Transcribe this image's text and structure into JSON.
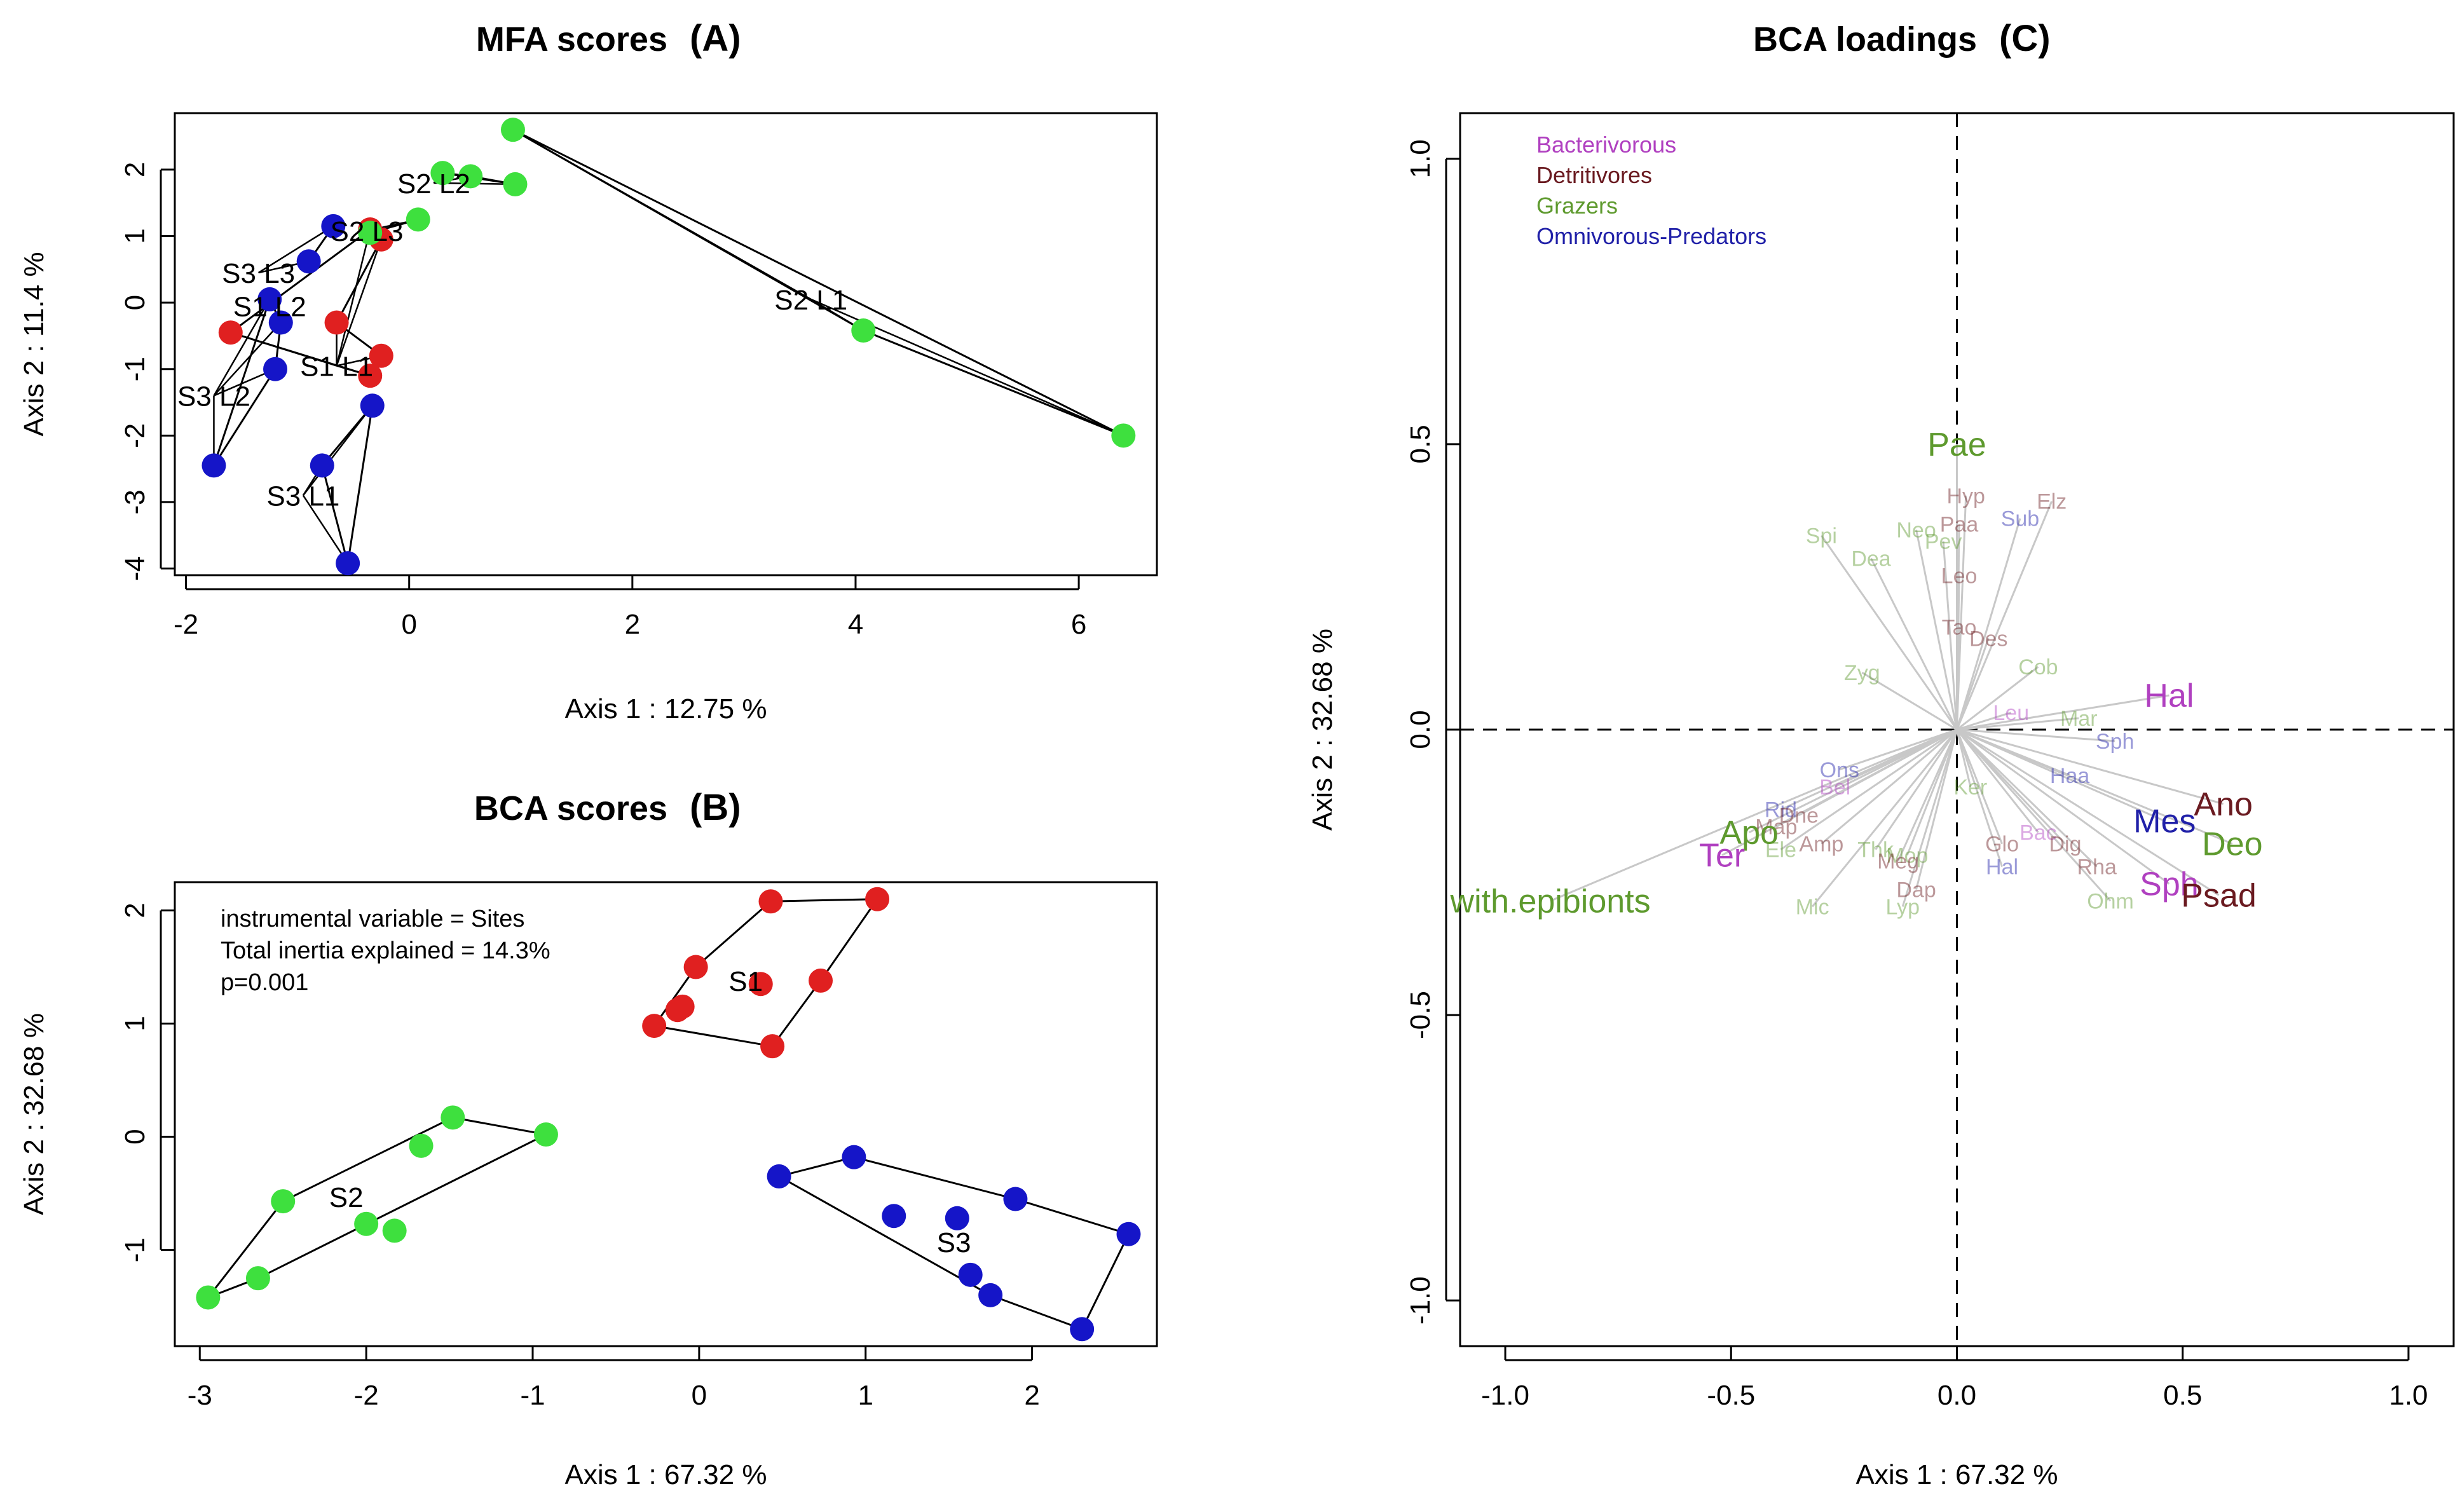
{
  "chart_data": [
    {
      "id": "A",
      "type": "scatter",
      "title": "MFA scores",
      "panel_tag": "(A)",
      "xlabel": "Axis 1 :  12.75 %",
      "ylabel": "Axis 2 :  11.4 %",
      "xlim": [
        -2.1,
        6.7
      ],
      "ylim": [
        -4.1,
        2.85
      ],
      "xticks": [
        -2,
        0,
        2,
        4,
        6
      ],
      "yticks": [
        -4,
        -3,
        -2,
        -1,
        0,
        1,
        2
      ],
      "colors": {
        "S1": "#e02020",
        "S2": "#3ee03e",
        "S3": "#1515c8"
      },
      "groups": [
        {
          "name": "S1 L1",
          "site": "S1",
          "label_xy": [
            -0.65,
            -0.95
          ],
          "points": [
            [
              -0.35,
              1.1
            ],
            [
              -0.25,
              0.95
            ],
            [
              -0.65,
              -0.3
            ],
            [
              -0.25,
              -0.8
            ],
            [
              -0.35,
              -1.1
            ],
            [
              -1.6,
              -0.45
            ]
          ]
        },
        {
          "name": "S2 L1",
          "site": "S2",
          "label_xy": [
            3.6,
            0.05
          ],
          "points": [
            [
              0.93,
              2.6
            ],
            [
              6.4,
              -2.0
            ],
            [
              4.07,
              -0.42
            ]
          ]
        },
        {
          "name": "S2 L2",
          "site": "S2",
          "label_xy": [
            0.22,
            1.8
          ],
          "points": [
            [
              0.3,
              1.95
            ],
            [
              0.55,
              1.9
            ],
            [
              0.95,
              1.78
            ]
          ]
        },
        {
          "name": "S2 L3",
          "site": "S2",
          "label_xy": [
            -0.38,
            1.08
          ],
          "points": [
            [
              -0.35,
              1.05
            ],
            [
              0.08,
              1.25
            ]
          ]
        },
        {
          "name": "S3 L1",
          "site": "S3",
          "label_xy": [
            -0.95,
            -2.9
          ],
          "points": [
            [
              -0.33,
              -1.55
            ],
            [
              -0.78,
              -2.45
            ],
            [
              -0.55,
              -3.92
            ]
          ]
        },
        {
          "name": "S3 L2",
          "site": "S3",
          "label_xy": [
            -1.75,
            -1.4
          ],
          "points": [
            [
              -1.25,
              0.05
            ],
            [
              -1.15,
              -0.3
            ],
            [
              -1.2,
              -1.0
            ],
            [
              -1.75,
              -2.45
            ]
          ]
        },
        {
          "name": "S3 L3",
          "site": "S3",
          "label_xy": [
            -1.35,
            0.45
          ],
          "points": [
            [
              -0.68,
              1.15
            ],
            [
              -0.9,
              0.62
            ]
          ]
        }
      ],
      "text_labels": [
        "S3 L3",
        "S2 L3",
        "S1 L2",
        "S1 L1",
        "S3 L2",
        "S3 L1",
        "S2 L2",
        "S2 L1"
      ],
      "label_positions": [
        [
          -1.35,
          0.45
        ],
        [
          -0.38,
          1.08
        ],
        [
          -1.25,
          -0.05
        ],
        [
          -0.65,
          -0.95
        ],
        [
          -1.75,
          -1.4
        ],
        [
          -0.95,
          -2.9
        ],
        [
          0.22,
          1.8
        ],
        [
          3.6,
          0.05
        ]
      ]
    },
    {
      "id": "B",
      "type": "scatter",
      "title": "BCA scores",
      "panel_tag": "(B)",
      "xlabel": "Axis 1 :  67.32 %",
      "ylabel": "Axis 2 :  32.68 %",
      "xlim": [
        -3.15,
        2.75
      ],
      "ylim": [
        -1.85,
        2.25
      ],
      "xticks": [
        -3,
        -2,
        -1,
        0,
        1,
        2
      ],
      "yticks": [
        -1,
        0,
        1,
        2
      ],
      "info_lines": [
        "instrumental variable = Sites",
        "Total inertia explained = 14.3%",
        "p=0.001"
      ],
      "colors": {
        "S1": "#e02020",
        "S2": "#3ee03e",
        "S3": "#1515c8"
      },
      "groups": [
        {
          "name": "S1",
          "label_xy": [
            0.28,
            1.38
          ],
          "points": [
            [
              0.43,
              2.08
            ],
            [
              1.07,
              2.1
            ],
            [
              -0.02,
              1.5
            ],
            [
              0.73,
              1.38
            ],
            [
              0.37,
              1.35
            ],
            [
              -0.1,
              1.15
            ],
            [
              -0.13,
              1.12
            ],
            [
              -0.27,
              0.98
            ],
            [
              0.44,
              0.8
            ]
          ],
          "hull": [
            [
              0.43,
              2.08
            ],
            [
              1.07,
              2.1
            ],
            [
              0.73,
              1.38
            ],
            [
              0.44,
              0.8
            ],
            [
              -0.27,
              0.98
            ],
            [
              -0.02,
              1.5
            ]
          ]
        },
        {
          "name": "S2",
          "label_xy": [
            -2.12,
            -0.53
          ],
          "points": [
            [
              -1.48,
              0.17
            ],
            [
              -0.92,
              0.02
            ],
            [
              -1.67,
              -0.08
            ],
            [
              -2.5,
              -0.57
            ],
            [
              -2.0,
              -0.77
            ],
            [
              -1.83,
              -0.83
            ],
            [
              -2.65,
              -1.25
            ],
            [
              -2.95,
              -1.42
            ]
          ],
          "hull": [
            [
              -1.48,
              0.17
            ],
            [
              -0.92,
              0.02
            ],
            [
              -2.65,
              -1.25
            ],
            [
              -2.95,
              -1.42
            ],
            [
              -2.5,
              -0.57
            ]
          ]
        },
        {
          "name": "S3",
          "label_xy": [
            1.53,
            -0.93
          ],
          "points": [
            [
              0.48,
              -0.35
            ],
            [
              0.93,
              -0.18
            ],
            [
              1.9,
              -0.55
            ],
            [
              1.17,
              -0.7
            ],
            [
              1.55,
              -0.72
            ],
            [
              2.58,
              -0.86
            ],
            [
              1.63,
              -1.22
            ],
            [
              1.75,
              -1.4
            ],
            [
              2.3,
              -1.7
            ]
          ],
          "hull": [
            [
              0.48,
              -0.35
            ],
            [
              0.93,
              -0.18
            ],
            [
              1.9,
              -0.55
            ],
            [
              2.58,
              -0.86
            ],
            [
              2.3,
              -1.7
            ],
            [
              1.75,
              -1.4
            ]
          ]
        }
      ]
    },
    {
      "id": "C",
      "type": "scatter",
      "title": "BCA loadings",
      "panel_tag": "(C)",
      "xlabel": "Axis 1 :  67.32 %",
      "ylabel": "Axis 2 :  32.68 %",
      "xlim": [
        -1.1,
        1.1
      ],
      "ylim": [
        -1.08,
        1.08
      ],
      "xticks": [
        -1.0,
        -0.5,
        0.0,
        0.5,
        1.0
      ],
      "yticks": [
        -1.0,
        -0.5,
        0.0,
        0.5,
        1.0
      ],
      "tick_labels": [
        "-1.0",
        "-0.5",
        "0.0",
        "0.5",
        "1.0"
      ],
      "legend": [
        {
          "label": "Bacterivorous",
          "color": "#b040c0"
        },
        {
          "label": "Detritivores",
          "color": "#6a1a20"
        },
        {
          "label": "Grazers",
          "color": "#5e9a2e"
        },
        {
          "label": "Omnivorous-Predators",
          "color": "#2020a8"
        }
      ],
      "strong_loadings": [
        {
          "label": "Pae",
          "x": 0.0,
          "y": 0.5,
          "group": "Grazers"
        },
        {
          "label": "Hal",
          "x": 0.47,
          "y": 0.06,
          "group": "Bacterivorous"
        },
        {
          "label": "Ano",
          "x": 0.59,
          "y": -0.13,
          "group": "Detritivores"
        },
        {
          "label": "Mes",
          "x": 0.46,
          "y": -0.16,
          "group": "Omnivorous-Predators"
        },
        {
          "label": "Deo",
          "x": 0.61,
          "y": -0.2,
          "group": "Grazers"
        },
        {
          "label": "Sph",
          "x": 0.47,
          "y": -0.27,
          "group": "Bacterivorous"
        },
        {
          "label": "Psad",
          "x": 0.58,
          "y": -0.29,
          "group": "Detritivores"
        },
        {
          "label": "Apo",
          "x": -0.46,
          "y": -0.18,
          "group": "Grazers"
        },
        {
          "label": "Ter",
          "x": -0.52,
          "y": -0.22,
          "group": "Bacterivorous"
        },
        {
          "label": "with.epibionts",
          "x": -0.9,
          "y": -0.3,
          "group": "Grazers"
        }
      ],
      "faint_loadings": [
        {
          "label": "Hyp",
          "x": 0.02,
          "y": 0.41,
          "group": "Detritivores"
        },
        {
          "label": "Elz",
          "x": 0.21,
          "y": 0.4,
          "group": "Detritivores"
        },
        {
          "label": "Paa",
          "x": 0.005,
          "y": 0.36,
          "group": "Detritivores"
        },
        {
          "label": "Sub",
          "x": 0.14,
          "y": 0.37,
          "group": "Omnivorous-Predators"
        },
        {
          "label": "Spi",
          "x": -0.3,
          "y": 0.34,
          "group": "Grazers"
        },
        {
          "label": "Neo",
          "x": -0.09,
          "y": 0.35,
          "group": "Grazers"
        },
        {
          "label": "Pev",
          "x": -0.03,
          "y": 0.33,
          "group": "Grazers"
        },
        {
          "label": "Dea",
          "x": -0.19,
          "y": 0.3,
          "group": "Grazers"
        },
        {
          "label": "Leo",
          "x": 0.005,
          "y": 0.27,
          "group": "Detritivores"
        },
        {
          "label": "Tao",
          "x": 0.005,
          "y": 0.18,
          "group": "Detritivores"
        },
        {
          "label": "Des",
          "x": 0.07,
          "y": 0.16,
          "group": "Detritivores"
        },
        {
          "label": "Cob",
          "x": 0.18,
          "y": 0.11,
          "group": "Grazers"
        },
        {
          "label": "Zyg",
          "x": -0.21,
          "y": 0.1,
          "group": "Grazers"
        },
        {
          "label": "Leu",
          "x": 0.12,
          "y": 0.03,
          "group": "Bacterivorous"
        },
        {
          "label": "Mar",
          "x": 0.27,
          "y": 0.02,
          "group": "Grazers"
        },
        {
          "label": "Sph",
          "x": 0.35,
          "y": -0.02,
          "group": "Omnivorous-Predators"
        },
        {
          "label": "Haa",
          "x": 0.25,
          "y": -0.08,
          "group": "Omnivorous-Predators"
        },
        {
          "label": "Ker",
          "x": 0.03,
          "y": -0.1,
          "group": "Grazers"
        },
        {
          "label": "Ons",
          "x": -0.26,
          "y": -0.07,
          "group": "Omnivorous-Predators"
        },
        {
          "label": "Bel",
          "x": -0.27,
          "y": -0.1,
          "group": "Bacterivorous"
        },
        {
          "label": "Rid",
          "x": -0.39,
          "y": -0.14,
          "group": "Omnivorous-Predators"
        },
        {
          "label": "Dne",
          "x": -0.35,
          "y": -0.15,
          "group": "Detritivores"
        },
        {
          "label": "Map",
          "x": -0.4,
          "y": -0.17,
          "group": "Detritivores"
        },
        {
          "label": "Ele",
          "x": -0.39,
          "y": -0.21,
          "group": "Grazers"
        },
        {
          "label": "Amp",
          "x": -0.3,
          "y": -0.2,
          "group": "Detritivores"
        },
        {
          "label": "Thk",
          "x": -0.18,
          "y": -0.21,
          "group": "Grazers"
        },
        {
          "label": "Mop",
          "x": -0.11,
          "y": -0.22,
          "group": "Grazers"
        },
        {
          "label": "Meg",
          "x": -0.13,
          "y": -0.23,
          "group": "Detritivores"
        },
        {
          "label": "Dap",
          "x": -0.09,
          "y": -0.28,
          "group": "Detritivores"
        },
        {
          "label": "Lyp",
          "x": -0.12,
          "y": -0.31,
          "group": "Grazers"
        },
        {
          "label": "Mic",
          "x": -0.32,
          "y": -0.31,
          "group": "Grazers"
        },
        {
          "label": "Bac",
          "x": 0.18,
          "y": -0.18,
          "group": "Bacterivorous"
        },
        {
          "label": "Glo",
          "x": 0.1,
          "y": -0.2,
          "group": "Detritivores"
        },
        {
          "label": "Dig",
          "x": 0.24,
          "y": -0.2,
          "group": "Detritivores"
        },
        {
          "label": "Hal",
          "x": 0.1,
          "y": -0.24,
          "group": "Omnivorous-Predators"
        },
        {
          "label": "Rha",
          "x": 0.31,
          "y": -0.24,
          "group": "Detritivores"
        },
        {
          "label": "Ohm",
          "x": 0.34,
          "y": -0.3,
          "group": "Grazers"
        }
      ]
    }
  ]
}
